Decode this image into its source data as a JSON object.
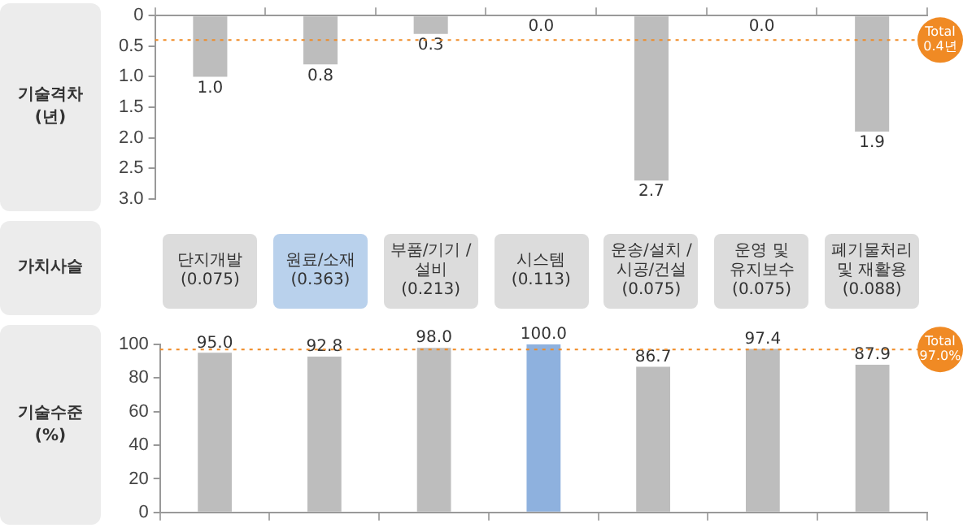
{
  "chart_data": [
    {
      "type": "bar",
      "ylabel": "기술격차 (년)",
      "categories": [
        null,
        null,
        null,
        null,
        null,
        null,
        null
      ],
      "values": [
        1.0,
        0.8,
        0.3,
        0.0,
        2.7,
        0.0,
        1.9
      ],
      "value_labels": [
        "1.0",
        "0.8",
        "0.3",
        "0.0",
        "2.7",
        "0.0",
        "1.9"
      ],
      "colors": [
        "#bdbdbd",
        "#bdbdbd",
        "#bdbdbd",
        "#8eb1de",
        "#bdbdbd",
        "#8eb1de",
        "#bdbdbd"
      ],
      "ylim": [
        3.0,
        0
      ],
      "yticks": [
        0,
        {
          "value": 0.5,
          "label": "0.5"
        },
        {
          "value": 1,
          "label": "1.0"
        },
        {
          "value": 1.5,
          "label": "1.5"
        },
        {
          "value": 2,
          "label": "2.0"
        },
        {
          "value": 2.5,
          "label": "2.5"
        },
        {
          "value": 3,
          "label": "3.0"
        }
      ],
      "tick_labels": "y",
      "ref_lines": [
        {
          "axis": "y",
          "value": 0.4,
          "label": "Total 0.4년",
          "color": "#f08a24",
          "line_style": "dotted"
        }
      ]
    },
    {
      "type": "other",
      "title": "가치사슬",
      "annotations": [
        "단지개발 (0.075)",
        "원료/소재 (0.363)",
        "부품/기기 /설비 (0.213)",
        "시스템 (0.113)",
        "운송/설치 /시공/건설 (0.075)",
        "운영 및 유지보수 (0.075)",
        "폐기물처리 및 재활용 (0.088)"
      ],
      "colors": [
        "#dcdcdc",
        "#b9d1ec",
        "#dcdcdc",
        "#dcdcdc",
        "#dcdcdc",
        "#dcdcdc",
        "#dcdcdc"
      ]
    },
    {
      "type": "bar",
      "ylabel": "기술수준 (%)",
      "categories": [
        null,
        null,
        null,
        null,
        null,
        null,
        null
      ],
      "values": [
        95.0,
        92.8,
        98.0,
        100.0,
        86.7,
        97.4,
        87.9
      ],
      "value_labels": [
        "95.0",
        "92.8",
        "98.0",
        "100.0",
        "86.7",
        "97.4",
        "87.9"
      ],
      "colors": [
        "#bdbdbd",
        "#bdbdbd",
        "#bdbdbd",
        "#8eb1de",
        "#bdbdbd",
        "#bdbdbd",
        "#bdbdbd"
      ],
      "ylim": [
        0,
        100
      ],
      "yticks": [
        0,
        20,
        40,
        60,
        80,
        100
      ],
      "tick_labels": "y",
      "ref_lines": [
        {
          "axis": "y",
          "value": 97.0,
          "label": "Total 97.0%",
          "color": "#f08a24",
          "line_style": "dotted"
        }
      ]
    }
  ]
}
